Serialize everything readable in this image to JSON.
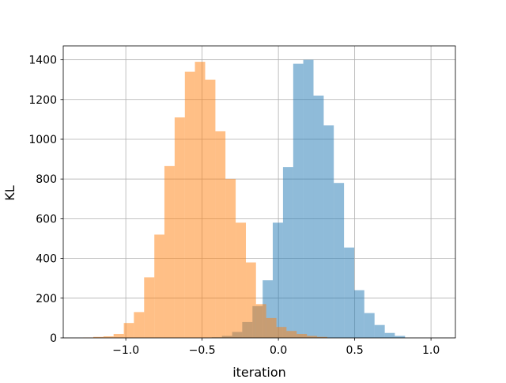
{
  "chart_data": {
    "type": "bar",
    "subtype": "histogram",
    "title": "",
    "xlabel": "iteration",
    "ylabel": "KL",
    "xlim": [
      -1.41,
      1.16
    ],
    "ylim": [
      0,
      1470
    ],
    "grid": true,
    "legend": "none",
    "x_ticks": [
      -1.0,
      -0.5,
      0.0,
      0.5,
      1.0
    ],
    "x_tick_labels": [
      "−1.0",
      "−0.5",
      "0.0",
      "0.5",
      "1.0"
    ],
    "y_ticks": [
      0,
      200,
      400,
      600,
      800,
      1000,
      1200,
      1400
    ],
    "y_tick_labels": [
      "0",
      "200",
      "400",
      "600",
      "800",
      "1000",
      "1200",
      "1400"
    ],
    "series": [
      {
        "color": "#1f77b4",
        "opacity": 0.5,
        "bin_edges": [
          -0.437,
          -0.37,
          -0.303,
          -0.237,
          -0.17,
          -0.103,
          -0.037,
          0.03,
          0.097,
          0.163,
          0.23,
          0.297,
          0.363,
          0.43,
          0.497,
          0.563,
          0.63,
          0.697,
          0.763,
          0.83
        ],
        "counts": [
          3,
          10,
          30,
          80,
          160,
          290,
          580,
          860,
          1380,
          1400,
          1220,
          1070,
          780,
          455,
          240,
          125,
          65,
          25,
          10
        ]
      },
      {
        "color": "#ff7f0e",
        "opacity": 0.5,
        "bin_edges": [
          -1.28,
          -1.213,
          -1.147,
          -1.08,
          -1.013,
          -0.947,
          -0.88,
          -0.813,
          -0.747,
          -0.68,
          -0.613,
          -0.547,
          -0.48,
          -0.413,
          -0.347,
          -0.28,
          -0.213,
          -0.147,
          -0.08,
          -0.013,
          0.053,
          0.12,
          0.187,
          0.253,
          0.32
        ],
        "counts": [
          2,
          5,
          8,
          20,
          75,
          130,
          305,
          520,
          865,
          1110,
          1340,
          1390,
          1300,
          1040,
          800,
          580,
          380,
          170,
          100,
          55,
          35,
          20,
          10,
          5
        ]
      }
    ]
  }
}
